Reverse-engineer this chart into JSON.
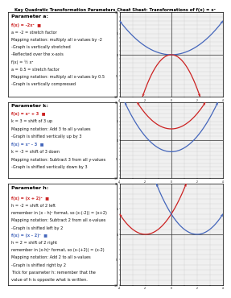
{
  "title": "Key Quadratic Transformation Parameters Cheat Sheet: Transformations of f(x) = x²",
  "sections": [
    {
      "label": "Parameter a:",
      "lines": [
        {
          "text": "f(x) = -2x²  ■",
          "color": "#cc2222",
          "bold": true,
          "dot": true
        },
        {
          "text": "a = -2 = stretch factor",
          "color": "#111111",
          "bold": false
        },
        {
          "text": "Mapping notation: multiply all x-values by -2",
          "color": "#111111",
          "bold": false
        },
        {
          "text": "-Graph is vertically stretched",
          "color": "#111111",
          "bold": false
        },
        {
          "text": "-Reflected over the x-axis",
          "color": "#111111",
          "bold": false
        },
        {
          "text": "f(x) = ½ x²",
          "color": "#111111",
          "bold": false
        },
        {
          "text": "a = 0.5 = stretch factor",
          "color": "#111111",
          "bold": false
        },
        {
          "text": "Mapping notation: multiply all x-values by 0.5",
          "color": "#111111",
          "bold": false
        },
        {
          "text": "-Graph is vertically compressed",
          "color": "#111111",
          "bold": false
        }
      ],
      "plot": {
        "curves": [
          {
            "func": "0.5*x**2",
            "color": "#4466bb",
            "lw": 0.9
          },
          {
            "func": "-2*x**2",
            "color": "#cc2222",
            "lw": 0.9
          }
        ],
        "xlim": [
          -4,
          4
        ],
        "ylim": [
          -10,
          10
        ]
      }
    },
    {
      "label": "Parameter k:",
      "lines": [
        {
          "text": "f(x) = x² + 3  ■",
          "color": "#cc2222",
          "bold": true
        },
        {
          "text": "k = 3 = shift of 3 up",
          "color": "#111111",
          "bold": false
        },
        {
          "text": "Mapping notation: Add 3 to all y-values",
          "color": "#111111",
          "bold": false
        },
        {
          "text": "-Graph is shifted vertically up by 3",
          "color": "#111111",
          "bold": false
        },
        {
          "text": "f(x) = x² - 3  ■",
          "color": "#4466bb",
          "bold": true
        },
        {
          "text": "k = -3 = shift of 3 down",
          "color": "#111111",
          "bold": false
        },
        {
          "text": "Mapping notation: Subtract 3 from all y-values",
          "color": "#111111",
          "bold": false
        },
        {
          "text": "-Graph is shifted vertically down by 3",
          "color": "#111111",
          "bold": false
        }
      ],
      "plot": {
        "curves": [
          {
            "func": "x**2+3",
            "color": "#cc2222",
            "lw": 0.9
          },
          {
            "func": "x**2-3",
            "color": "#4466bb",
            "lw": 0.9
          }
        ],
        "xlim": [
          -4,
          4
        ],
        "ylim": [
          -10,
          10
        ]
      }
    },
    {
      "label": "Parameter h:",
      "lines": [
        {
          "text": "f(x) = (x + 2)²  ■",
          "color": "#cc2222",
          "bold": true
        },
        {
          "text": "h = -2 = shift of 2 left",
          "color": "#111111",
          "bold": false
        },
        {
          "text": "remember in (x - h)² format, so (x-(-2)) = (x+2)",
          "color": "#111111",
          "bold": false
        },
        {
          "text": "Mapping notation: Subtract 2 from all x-values",
          "color": "#111111",
          "bold": false
        },
        {
          "text": "-Graph is shifted left by 2",
          "color": "#111111",
          "bold": false
        },
        {
          "text": "f(x) = (x - 2)²  ■",
          "color": "#4466bb",
          "bold": true
        },
        {
          "text": "h = 2 = shift of 2 right",
          "color": "#111111",
          "bold": false
        },
        {
          "text": "remember in (x-h)² format, so (x-(+2)) = (x-2)",
          "color": "#111111",
          "bold": false
        },
        {
          "text": "Mapping notation: Add 2 to all x-values",
          "color": "#111111",
          "bold": false
        },
        {
          "text": "-Graph is shifted right by 2",
          "color": "#111111",
          "bold": false
        },
        {
          "text": "Trick for parameter h: remember that the",
          "color": "#111111",
          "bold": false,
          "underline": true
        },
        {
          "text": "value of h is opposite what is written.",
          "color": "#111111",
          "bold": false
        }
      ],
      "plot": {
        "curves": [
          {
            "func": "(x+2)**2",
            "color": "#cc2222",
            "lw": 0.9
          },
          {
            "func": "(x-2)**2",
            "color": "#4466bb",
            "lw": 0.9
          }
        ],
        "xlim": [
          -4,
          4
        ],
        "ylim": [
          -10,
          10
        ]
      }
    }
  ],
  "bg_color": "#ffffff",
  "border_color": "#000000",
  "grid_color": "#c8c8c8",
  "text_fontsize": 3.6,
  "label_fontsize": 4.5,
  "title_fontsize": 3.8
}
